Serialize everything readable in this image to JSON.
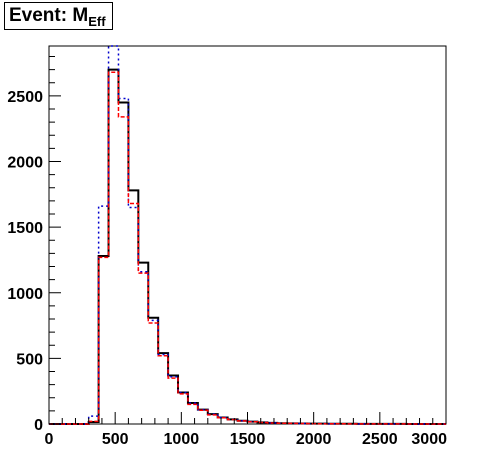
{
  "chart_data": {
    "type": "histogram",
    "title": "Event: M",
    "title_subscript": "Eff",
    "xlim": [
      0,
      3000
    ],
    "ylim": [
      0,
      2880
    ],
    "bin_width": 75,
    "x_ticks": [
      0,
      500,
      1000,
      1500,
      2000,
      2500,
      3000
    ],
    "y_ticks": [
      0,
      500,
      1000,
      1500,
      2000,
      2500
    ],
    "grid": false,
    "series": [
      {
        "color": "#000000",
        "style": "solid",
        "values": [
          0,
          0,
          0,
          0,
          15,
          1280,
          2700,
          2450,
          1780,
          1230,
          810,
          540,
          370,
          240,
          160,
          110,
          75,
          50,
          35,
          25,
          18,
          12,
          9,
          6,
          5,
          4,
          3,
          3,
          2,
          2,
          2,
          1,
          1,
          1,
          1,
          1,
          0,
          0,
          0,
          0
        ]
      },
      {
        "color": "#0000cc",
        "style": "dotted",
        "values": [
          0,
          0,
          0,
          0,
          60,
          1660,
          2880,
          2480,
          1650,
          1160,
          790,
          530,
          360,
          240,
          160,
          110,
          75,
          50,
          35,
          25,
          18,
          12,
          9,
          6,
          5,
          4,
          3,
          3,
          2,
          2,
          2,
          1,
          1,
          1,
          1,
          1,
          0,
          0,
          0,
          0
        ]
      },
      {
        "color": "#ff0000",
        "style": "dashed",
        "values": [
          0,
          0,
          0,
          0,
          20,
          1270,
          2680,
          2340,
          1680,
          1150,
          770,
          520,
          350,
          230,
          150,
          105,
          70,
          48,
          33,
          24,
          17,
          11,
          8,
          6,
          5,
          4,
          3,
          2,
          2,
          2,
          1,
          1,
          1,
          1,
          1,
          1,
          0,
          0,
          0,
          0
        ]
      }
    ]
  }
}
